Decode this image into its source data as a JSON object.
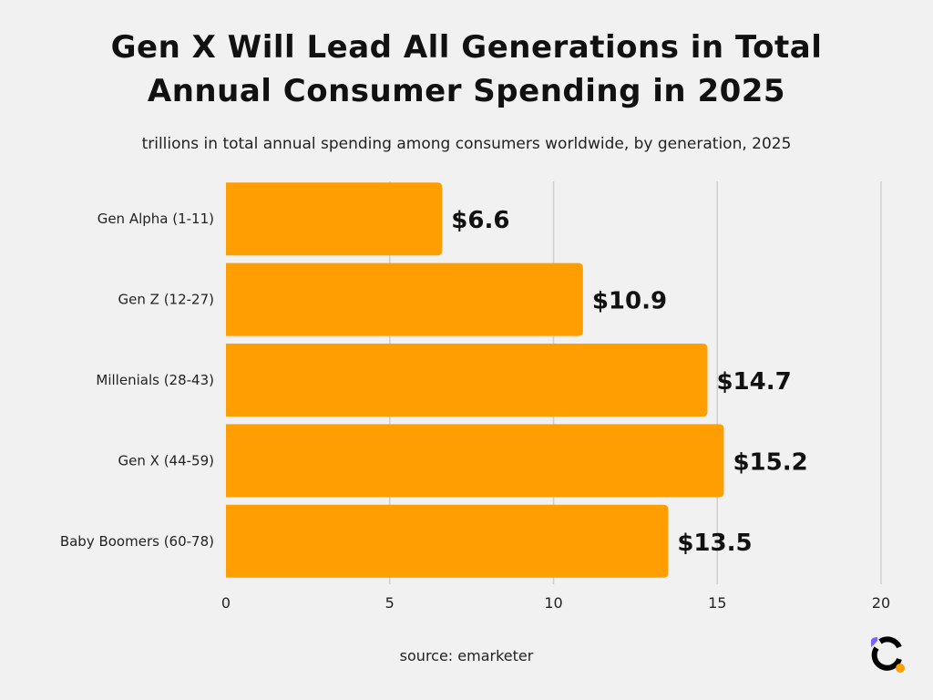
{
  "chart_data": {
    "type": "bar",
    "orientation": "horizontal",
    "title": "Gen X Will Lead All Generations in Total Annual Consumer Spending in 2025",
    "title_lines": [
      "Gen X Will Lead All Generations in Total",
      "Annual Consumer Spending in 2025"
    ],
    "subtitle": "trillions in total annual spending among consumers worldwide, by generation, 2025",
    "categories": [
      "Gen Alpha (1-11)",
      "Gen Z (12-27)",
      "Millenials (28-43)",
      "Gen X (44-59)",
      "Baby Boomers (60-78)"
    ],
    "values": [
      6.6,
      10.9,
      14.7,
      15.2,
      13.5
    ],
    "data_labels": [
      "$6.6",
      "$10.9",
      "$14.7",
      "$15.2",
      "$13.5"
    ],
    "xlim": [
      0,
      20
    ],
    "xticks": [
      0,
      5,
      10,
      15,
      20
    ],
    "xlabel": "",
    "ylabel": "",
    "grid": true,
    "bar_color": "#ff9e00"
  },
  "footer": {
    "source": "source: emarketer"
  },
  "logo": {
    "colors": [
      "#000000",
      "#7b61ff",
      "#ff9e00"
    ]
  }
}
